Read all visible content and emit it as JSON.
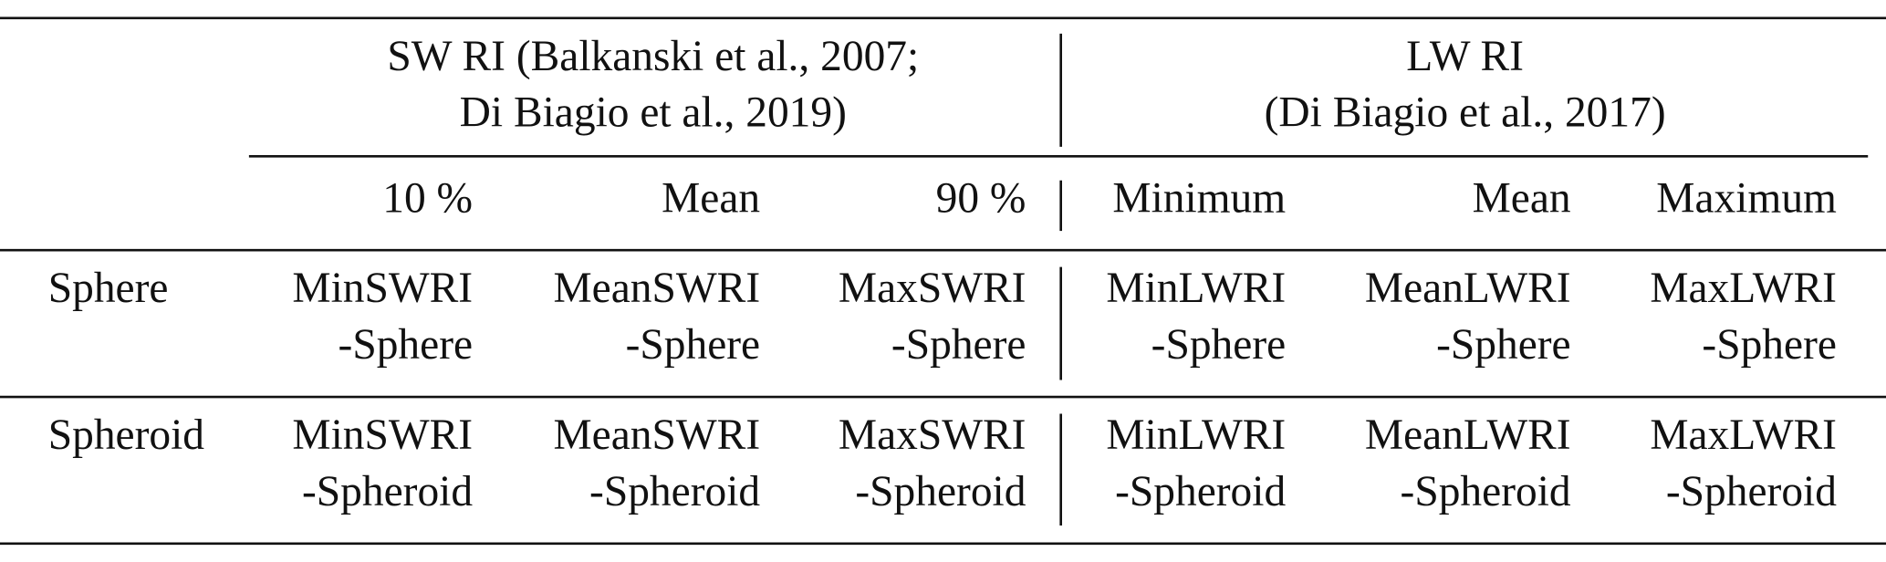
{
  "header": {
    "groups": [
      {
        "lines": [
          "SW RI (Balkanski et al., 2007;",
          "Di Biagio et al., 2019)"
        ]
      },
      {
        "lines": [
          "LW RI",
          "(Di Biagio et al., 2017)"
        ]
      }
    ],
    "columns": [
      "10 %",
      "Mean",
      "90 %",
      "Minimum",
      "Mean",
      "Maximum"
    ]
  },
  "rows": [
    {
      "label": "Sphere",
      "cells": [
        [
          "MinSWRI",
          "-Sphere"
        ],
        [
          "MeanSWRI",
          "-Sphere"
        ],
        [
          "MaxSWRI",
          "-Sphere"
        ],
        [
          "MinLWRI",
          "-Sphere"
        ],
        [
          "MeanLWRI",
          "-Sphere"
        ],
        [
          "MaxLWRI",
          "-Sphere"
        ]
      ]
    },
    {
      "label": "Spheroid",
      "cells": [
        [
          "MinSWRI",
          "-Spheroid"
        ],
        [
          "MeanSWRI",
          "-Spheroid"
        ],
        [
          "MaxSWRI",
          "-Spheroid"
        ],
        [
          "MinLWRI",
          "-Spheroid"
        ],
        [
          "MeanLWRI",
          "-Spheroid"
        ],
        [
          "MaxLWRI",
          "-Spheroid"
        ]
      ]
    }
  ]
}
